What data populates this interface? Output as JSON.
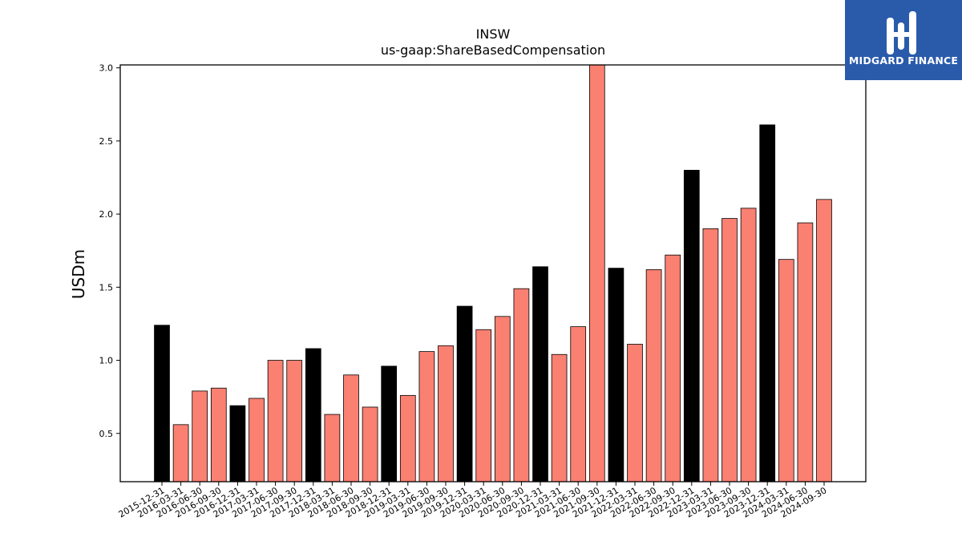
{
  "chart_data": {
    "type": "bar",
    "title": "INSW",
    "subtitle": "us-gaap:ShareBasedCompensation",
    "xlabel": "",
    "ylabel": "USDm",
    "ylim": [
      0.17,
      3.02
    ],
    "yticks": [
      "0.5",
      "1.0",
      "1.5",
      "2.0",
      "2.5",
      "3.0"
    ],
    "grid": false,
    "categories": [
      "2015-12-31",
      "2016-03-31",
      "2016-06-30",
      "2016-09-30",
      "2016-12-31",
      "2017-03-31",
      "2017-06-30",
      "2017-09-30",
      "2017-12-31",
      "2018-03-31",
      "2018-06-30",
      "2018-09-30",
      "2018-12-31",
      "2019-03-31",
      "2019-06-30",
      "2019-09-30",
      "2019-12-31",
      "2020-03-31",
      "2020-06-30",
      "2020-09-30",
      "2020-12-31",
      "2021-03-31",
      "2021-06-30",
      "2021-09-30",
      "2021-12-31",
      "2022-03-31",
      "2022-06-30",
      "2022-09-30",
      "2022-12-31",
      "2023-03-31",
      "2023-06-30",
      "2023-09-30",
      "2023-12-31",
      "2024-03-31",
      "2024-06-30",
      "2024-09-30"
    ],
    "values": [
      1.24,
      0.56,
      0.79,
      0.81,
      0.69,
      0.74,
      1.0,
      1.0,
      1.08,
      0.63,
      0.9,
      0.68,
      0.96,
      0.76,
      1.06,
      1.1,
      1.37,
      1.21,
      1.3,
      1.49,
      1.64,
      1.04,
      1.23,
      3.05,
      1.63,
      1.11,
      1.62,
      1.72,
      2.3,
      1.9,
      1.97,
      2.04,
      2.61,
      1.69,
      1.94,
      2.1
    ],
    "colors": {
      "year_end": "#000000",
      "quarter": "#fa8072",
      "edge": "#000000"
    }
  },
  "logo": {
    "text": "MIDGARD FINANCE",
    "background": "#2a5bab"
  }
}
